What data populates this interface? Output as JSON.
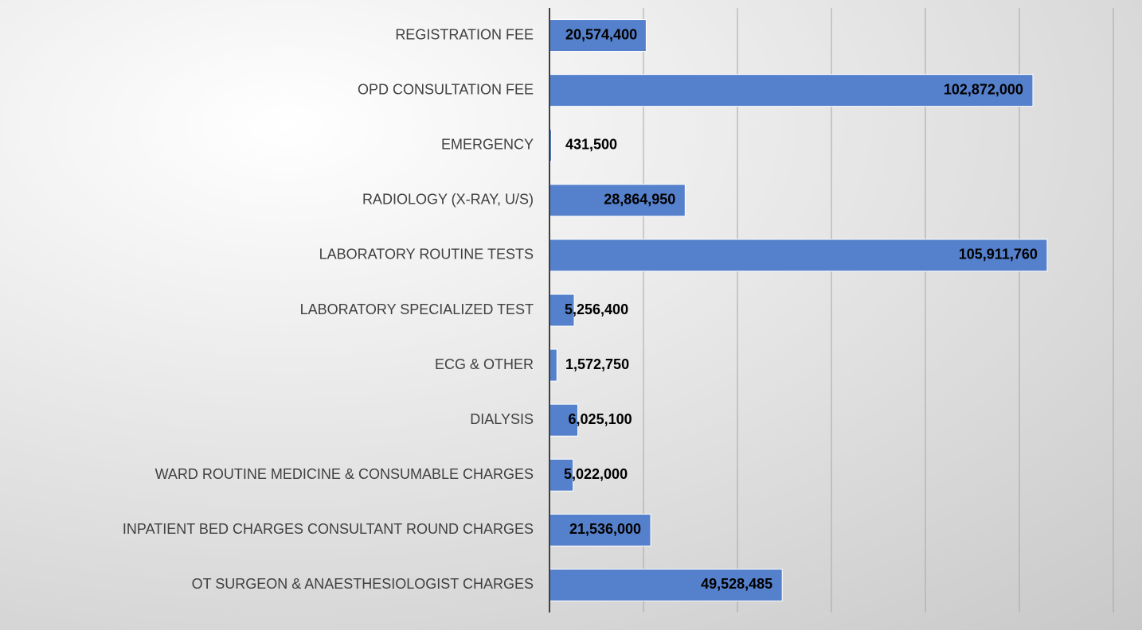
{
  "chart_data": {
    "type": "hbar",
    "categories": [
      "REGISTRATION FEE",
      "OPD CONSULTATION FEE",
      "EMERGENCY",
      "RADIOLOGY (X-RAY, U/S)",
      "LABORATORY ROUTINE TESTS",
      "LABORATORY SPECIALIZED TEST",
      "ECG & OTHER",
      "DIALYSIS",
      "WARD ROUTINE MEDICINE & CONSUMABLE CHARGES",
      "INPATIENT BED CHARGES CONSULTANT ROUND CHARGES",
      "OT SURGEON & ANAESTHESIOLOGIST CHARGES"
    ],
    "values": [
      20574400,
      102872000,
      431500,
      28864950,
      105911760,
      5256400,
      1572750,
      6025100,
      5022000,
      21536000,
      49528485
    ],
    "value_labels": [
      "20,574,400",
      "102,872,000",
      "431,500",
      "28,864,950",
      "105,911,760",
      "5,256,400",
      "1,572,750",
      "6,025,100",
      "5,022,000",
      "21,536,000",
      "49,528,485"
    ],
    "color": "#5580cc",
    "xlim": [
      0,
      120000000
    ],
    "xticks": [
      20000000,
      40000000,
      60000000,
      80000000,
      100000000,
      120000000
    ],
    "grid": true
  }
}
